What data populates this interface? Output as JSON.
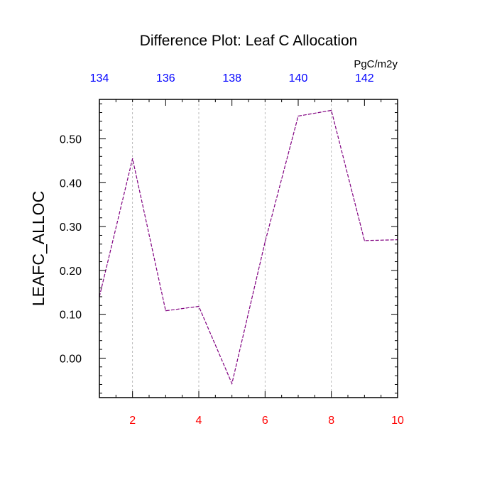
{
  "chart_data": {
    "type": "line",
    "title": "Difference Plot: Leaf C Allocation",
    "units_label": "PgC/m2y",
    "ylabel": "LEAFC_ALLOC",
    "xlim": [
      1,
      10
    ],
    "ylim": [
      -0.09,
      0.59
    ],
    "x_ticks": [
      2,
      4,
      6,
      8,
      10
    ],
    "y_ticks": [
      0.0,
      0.1,
      0.2,
      0.3,
      0.4,
      0.5
    ],
    "y_tick_labels": [
      "0.00",
      "0.10",
      "0.20",
      "0.30",
      "0.40",
      "0.50"
    ],
    "top_axis": {
      "range": [
        134,
        143
      ],
      "ticks": [
        134,
        136,
        138,
        140,
        142
      ]
    },
    "grid": "vertical-dashed",
    "colors": {
      "bottom_axis_labels": "#ff0000",
      "top_axis_labels": "#0000ff",
      "line": "#800080",
      "grid": "#aaaaaa"
    },
    "series": [
      {
        "x": [
          1,
          2,
          3,
          4,
          5,
          6,
          7,
          8,
          9,
          10
        ],
        "values": [
          0.14,
          0.455,
          0.108,
          0.118,
          -0.058,
          0.265,
          0.552,
          0.565,
          0.268,
          0.27
        ]
      }
    ]
  }
}
